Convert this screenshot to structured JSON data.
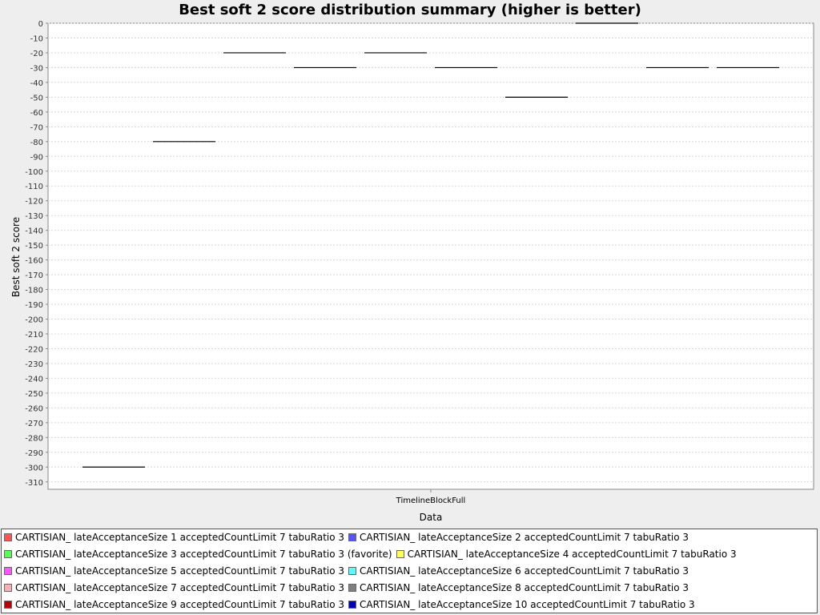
{
  "chart_data": {
    "type": "box",
    "title": "Best soft 2 score distribution summary (higher is better)",
    "xlabel": "Data",
    "ylabel": "Best soft 2 score",
    "categories": [
      "TimelineBlockFull"
    ],
    "ylim": [
      -315,
      0
    ],
    "ytick_step": 10,
    "grid": true,
    "legend_position": "bottom",
    "series": [
      {
        "name": "CARTISIAN_ lateAcceptanceSize 1 acceptedCountLimit 7 tabuRatio 3",
        "color": "#ff5555",
        "values": [
          -300
        ]
      },
      {
        "name": "CARTISIAN_ lateAcceptanceSize 2 acceptedCountLimit 7 tabuRatio 3",
        "color": "#5555ff",
        "values": [
          -80
        ]
      },
      {
        "name": "CARTISIAN_ lateAcceptanceSize 3 acceptedCountLimit 7 tabuRatio 3 (favorite)",
        "color": "#55ff55",
        "values": [
          -20
        ]
      },
      {
        "name": "CARTISIAN_ lateAcceptanceSize 4 acceptedCountLimit 7 tabuRatio 3",
        "color": "#ffff55",
        "values": [
          -30
        ]
      },
      {
        "name": "CARTISIAN_ lateAcceptanceSize 5 acceptedCountLimit 7 tabuRatio 3",
        "color": "#ff55ff",
        "values": [
          -20
        ]
      },
      {
        "name": "CARTISIAN_ lateAcceptanceSize 6 acceptedCountLimit 7 tabuRatio 3",
        "color": "#55ffff",
        "values": [
          -30
        ]
      },
      {
        "name": "CARTISIAN_ lateAcceptanceSize 7 acceptedCountLimit 7 tabuRatio 3",
        "color": "#ffafaf",
        "values": [
          -50
        ]
      },
      {
        "name": "CARTISIAN_ lateAcceptanceSize 8 acceptedCountLimit 7 tabuRatio 3",
        "color": "#808080",
        "values": [
          0
        ]
      },
      {
        "name": "CARTISIAN_ lateAcceptanceSize 9 acceptedCountLimit 7 tabuRatio 3",
        "color": "#c00000",
        "values": [
          -30
        ]
      },
      {
        "name": "CARTISIAN_ lateAcceptanceSize 10 acceptedCountLimit 7 tabuRatio 3",
        "color": "#0000c0",
        "values": [
          -30
        ]
      }
    ]
  }
}
